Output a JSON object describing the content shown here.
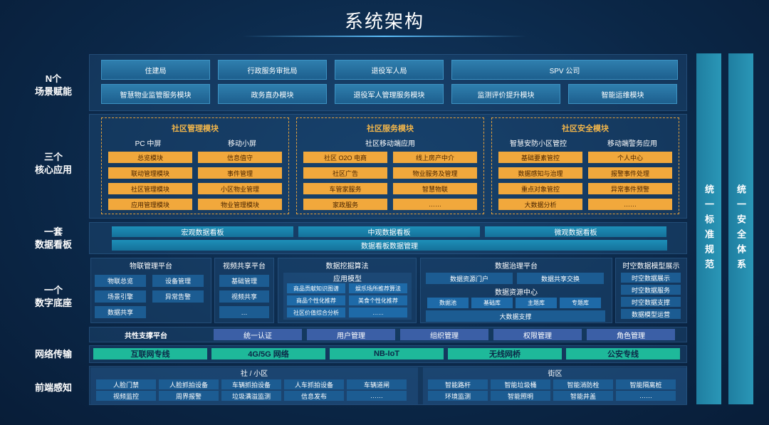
{
  "title": "系统架构",
  "side_labels": [
    [
      "N个",
      "场景赋能"
    ],
    [
      "三个",
      "核心应用"
    ],
    [
      "一套",
      "数据看板"
    ],
    [
      "一个",
      "数字底座"
    ],
    [
      "网络传输"
    ],
    [
      "前端感知"
    ]
  ],
  "standards": "统一标准规范",
  "security": "统一安全体系",
  "scenarios": {
    "row1": [
      "住建局",
      "行政服务审批局",
      "退役军人局",
      "SPV 公司"
    ],
    "row2": [
      "智慧物业监管服务模块",
      "政务直办模块",
      "退役军人管理服务模块",
      "监测评价提升模块",
      "智能运维模块"
    ]
  },
  "core_apps": [
    {
      "title": "社区管理模块",
      "subtitles": [
        "PC 中屏",
        "移动小屏"
      ],
      "left": [
        "总览模块",
        "联动管理模块",
        "社区管理模块",
        "应用管理模块"
      ],
      "right": [
        "信息值守",
        "事件管理",
        "小区物业管理",
        "物业管理模块"
      ]
    },
    {
      "title": "社区服务模块",
      "subtitles": [
        "社区移动端应用"
      ],
      "left": [
        "社区 O2O 电商",
        "社区广告",
        "车管家服务",
        "家政服务"
      ],
      "right": [
        "线上房产中介",
        "物业服务及管理",
        "智慧物联",
        "……"
      ]
    },
    {
      "title": "社区安全模块",
      "subtitles": [
        "智慧安防小区管控",
        "移动端警务应用"
      ],
      "left": [
        "基础要素管控",
        "数据感知与治理",
        "重点对象管控",
        "大数据分析"
      ],
      "right": [
        "个人中心",
        "报警事件处理",
        "异常事件预警",
        "……"
      ]
    }
  ],
  "dashboard": {
    "boards": [
      "宏观数据看板",
      "中观数据看板",
      "微观数据看板"
    ],
    "management": "数据看板数据管理"
  },
  "platform": {
    "iot": {
      "title": "物联管理平台",
      "items": [
        "物联总览",
        "设备管理",
        "场景引擎",
        "异常告警",
        "数据共享"
      ]
    },
    "video": {
      "title": "视频共享平台",
      "items": [
        "基础管理",
        "视频共享",
        "…"
      ]
    },
    "mining": {
      "title": "数据挖掘算法",
      "model_title": "应用模型",
      "items": [
        "商品贡献知识图谱",
        "娱乐场所推荐算法",
        "商品个性化推荐",
        "美食个性化推荐",
        "社区价值综合分析",
        "……"
      ]
    },
    "governance": {
      "title": "数据治理平台",
      "top": [
        "数据资源门户",
        "数据共享交换"
      ],
      "center": "数据资源中心",
      "libs": [
        "数据池",
        "基础库",
        "主题库",
        "专题库"
      ],
      "support": "大数据支撑"
    },
    "spatial": {
      "title": "时空数据模型展示",
      "items": [
        "时空数据展示",
        "时空数据服务",
        "时空数据支撑",
        "数据模型运营"
      ]
    },
    "common": {
      "title": "共性支撑平台",
      "items": [
        "统一认证",
        "用户管理",
        "组织管理",
        "权限管理",
        "角色管理"
      ]
    }
  },
  "network": [
    "互联网专线",
    "4G/5G 网络",
    "NB-IoT",
    "无线网桥",
    "公安专线"
  ],
  "sensing": {
    "community": {
      "title": "社 / 小区",
      "items": [
        "人脸门禁",
        "人脸抓拍设备",
        "车辆抓拍设备",
        "人车抓拍设备",
        "车辆道闸",
        "视频监控",
        "周界报警",
        "垃圾满溢监测",
        "信息发布",
        "……"
      ]
    },
    "street": {
      "title": "街区",
      "items": [
        "智能路杆",
        "智能垃圾桶",
        "智能消防栓",
        "智能隔离桩",
        "环境监测",
        "智能照明",
        "智能井盖",
        "……"
      ]
    }
  }
}
